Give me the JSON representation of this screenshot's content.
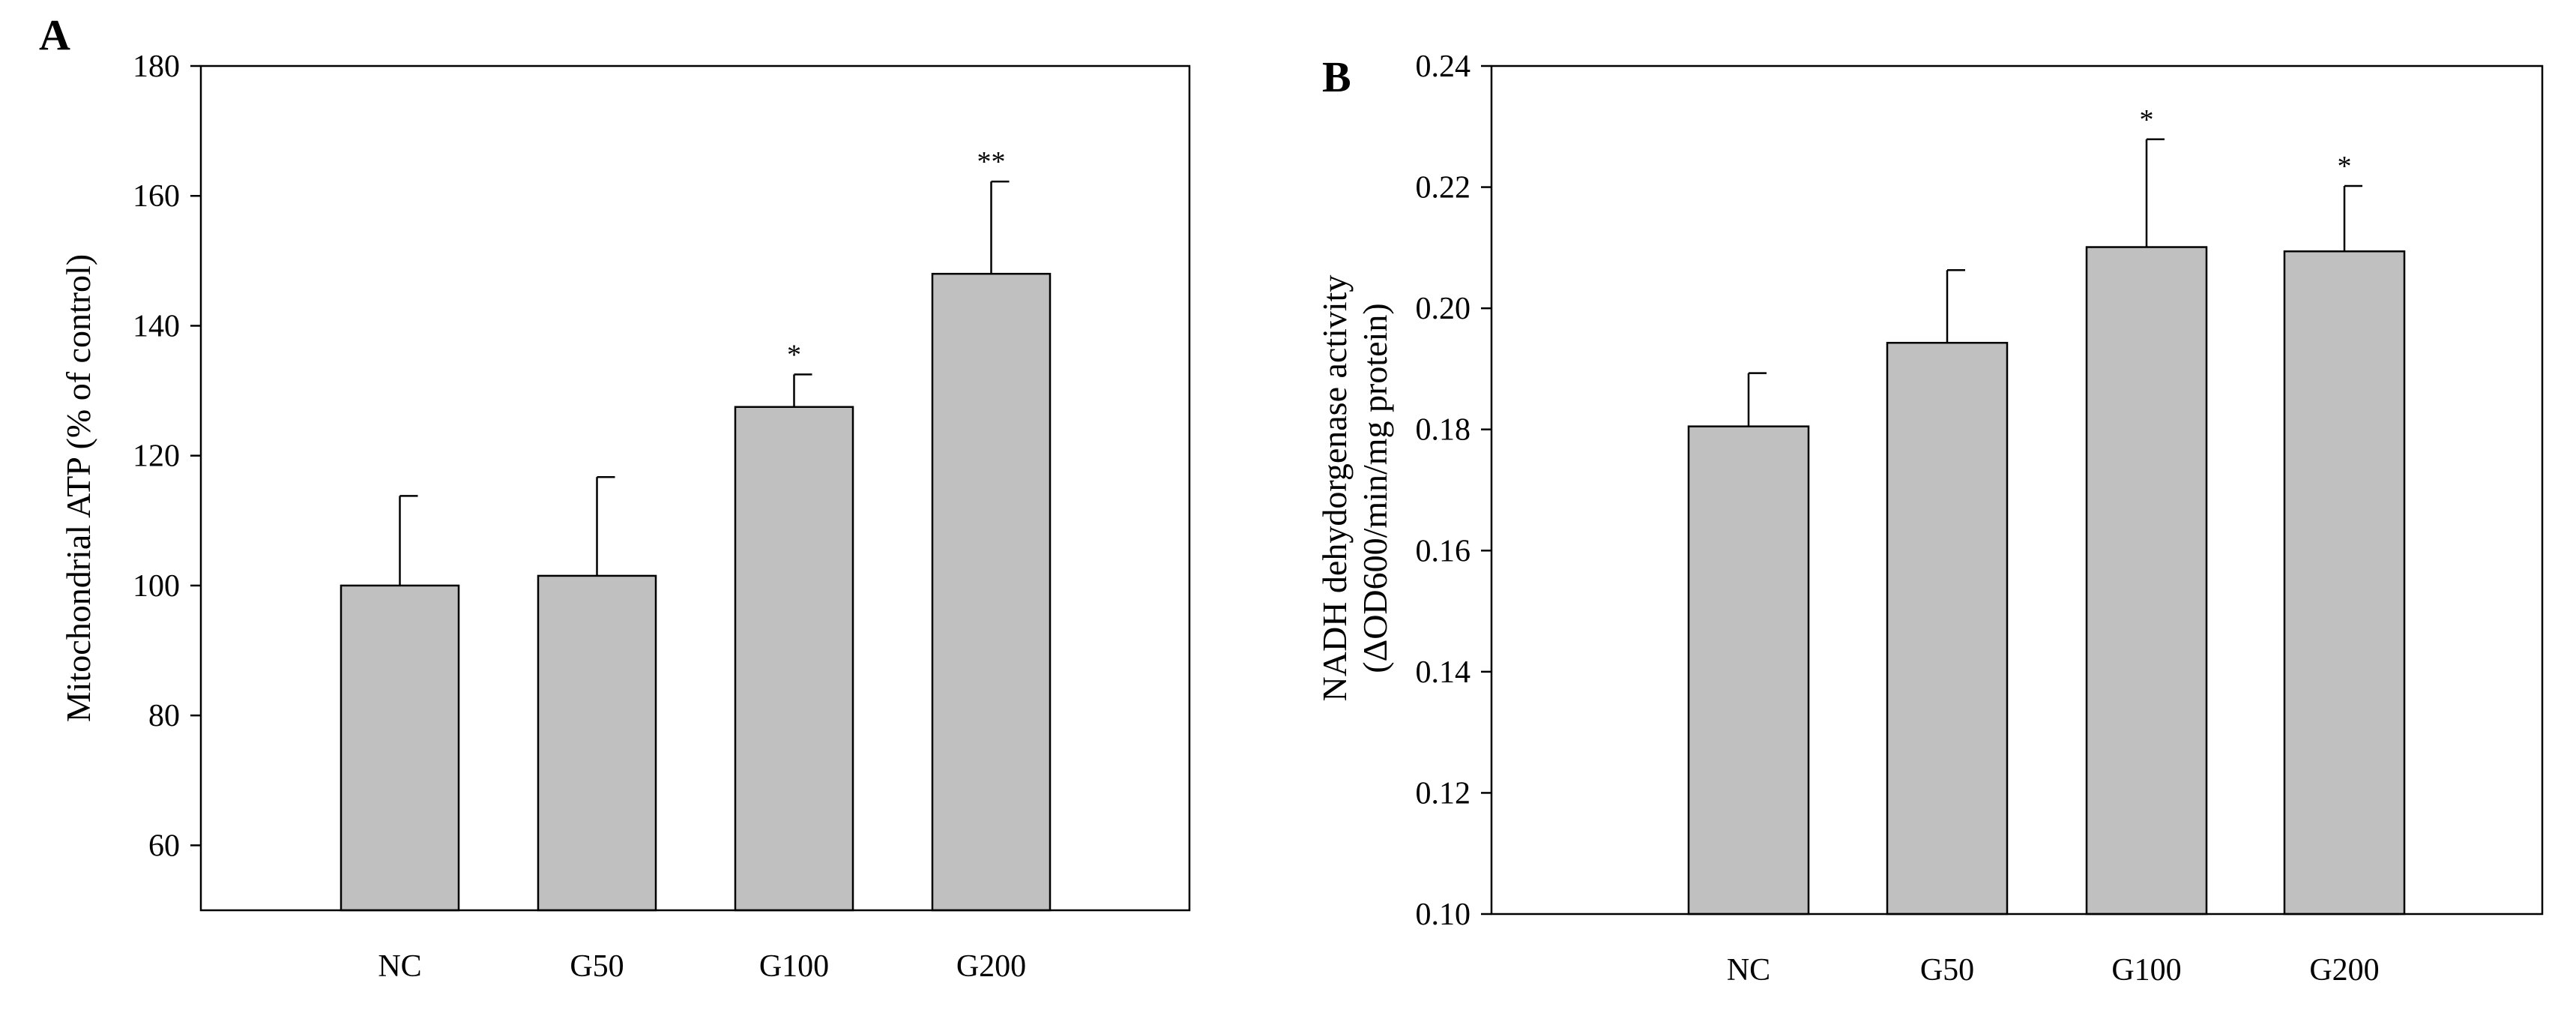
{
  "chart_data": [
    {
      "type": "bar",
      "panel": "A",
      "title": "",
      "categories": [
        "NC",
        "G50",
        "G100",
        "G200"
      ],
      "values": [
        100,
        101.5,
        127.5,
        148
      ],
      "errors": [
        13.8,
        15.2,
        5.0,
        14.2
      ],
      "significance": [
        "",
        "",
        "*",
        "**"
      ],
      "xlabel": "",
      "ylabel": "Mitochondrial ATP (% of control)",
      "ylim": [
        50,
        180
      ],
      "yticks": [
        60,
        80,
        100,
        120,
        140,
        160,
        180
      ],
      "ytick_labels": [
        "60",
        "80",
        "100",
        "120",
        "140",
        "160",
        "180"
      ],
      "bar_color": "#c0c0c0",
      "grid": false
    },
    {
      "type": "bar",
      "panel": "B",
      "title": "",
      "categories": [
        "NC",
        "G50",
        "G100",
        "G200"
      ],
      "values": [
        0.1805,
        0.1943,
        0.2101,
        0.2094
      ],
      "errors": [
        0.0088,
        0.012,
        0.0178,
        0.0108
      ],
      "significance": [
        "",
        "",
        "*",
        "*"
      ],
      "xlabel": "",
      "ylabel": [
        "NADH dehydorgenase activity",
        "(ΔOD600/min/mg  protein)"
      ],
      "ylim": [
        0.1,
        0.24
      ],
      "yticks": [
        0.1,
        0.12,
        0.14,
        0.16,
        0.18,
        0.2,
        0.22,
        0.24
      ],
      "ytick_labels": [
        "0.10",
        "0.12",
        "0.14",
        "0.16",
        "0.18",
        "0.20",
        "0.22",
        "0.24"
      ],
      "bar_color": "#c0c0c0",
      "grid": false
    }
  ]
}
